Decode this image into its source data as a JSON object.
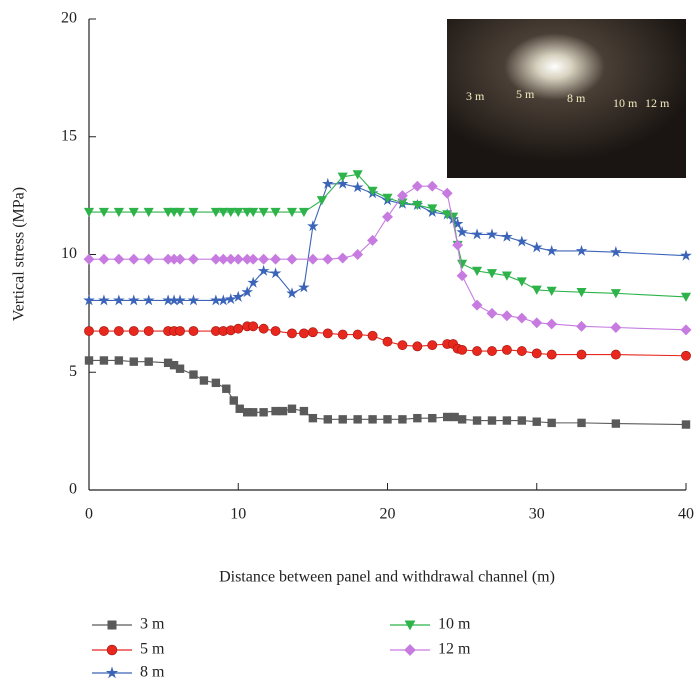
{
  "chart_data": {
    "type": "line",
    "x_label": "Distance between panel and withdrawal channel (m)",
    "y_label": "Vertical stress (MPa)",
    "xlim": [
      0,
      40
    ],
    "xticks": [
      0,
      10,
      20,
      30,
      40
    ],
    "ylim": [
      0,
      20
    ],
    "yticks": [
      0,
      5,
      10,
      15,
      20
    ],
    "inset_labels": [
      "3 m",
      "5 m",
      "8 m",
      "10 m",
      "12 m"
    ],
    "series": [
      {
        "name": "3 m",
        "color": "#5a5a5a",
        "marker": "square",
        "x": [
          0,
          1,
          2,
          3,
          4,
          5.3,
          5.7,
          6.1,
          7,
          7.7,
          8.5,
          9.2,
          9.7,
          10.1,
          10.6,
          11,
          11.7,
          12.5,
          13,
          13.6,
          14.4,
          15,
          16,
          17,
          18,
          19,
          20,
          21,
          22,
          23,
          24,
          24.5,
          25,
          26,
          27,
          28,
          29,
          30,
          31,
          33,
          35.3,
          40
        ],
        "values": [
          5.5,
          5.5,
          5.5,
          5.45,
          5.45,
          5.4,
          5.3,
          5.15,
          4.9,
          4.65,
          4.55,
          4.3,
          3.8,
          3.45,
          3.3,
          3.3,
          3.3,
          3.35,
          3.35,
          3.45,
          3.35,
          3.05,
          3.0,
          3.0,
          3.0,
          3.0,
          3.0,
          3.0,
          3.05,
          3.05,
          3.1,
          3.1,
          3.0,
          2.95,
          2.95,
          2.95,
          2.95,
          2.9,
          2.85,
          2.85,
          2.82,
          2.78
        ]
      },
      {
        "name": "5 m",
        "color": "#e8281e",
        "marker": "circle",
        "x": [
          0,
          1,
          2,
          3,
          4,
          5.3,
          5.7,
          6.1,
          7,
          8.5,
          9,
          9.5,
          10,
          10.6,
          11,
          11.7,
          12.5,
          13.6,
          14.4,
          15,
          16,
          17,
          18,
          19,
          20,
          21,
          22,
          23,
          24,
          24.4,
          24.7,
          25,
          26,
          27,
          28,
          29,
          30,
          31,
          33,
          35.3,
          40
        ],
        "values": [
          6.75,
          6.75,
          6.75,
          6.75,
          6.75,
          6.75,
          6.75,
          6.75,
          6.75,
          6.75,
          6.75,
          6.78,
          6.85,
          6.95,
          6.95,
          6.85,
          6.75,
          6.65,
          6.65,
          6.7,
          6.65,
          6.6,
          6.6,
          6.55,
          6.3,
          6.15,
          6.1,
          6.15,
          6.2,
          6.2,
          6.0,
          5.95,
          5.9,
          5.9,
          5.95,
          5.9,
          5.8,
          5.75,
          5.75,
          5.75,
          5.7
        ]
      },
      {
        "name": "8 m",
        "color": "#3b64b8",
        "marker": "star",
        "x": [
          0,
          1,
          2,
          3,
          4,
          5.3,
          5.7,
          6.1,
          7,
          8.5,
          9,
          9.5,
          10,
          10.6,
          11,
          11.7,
          12.5,
          13.6,
          14.4,
          15,
          16,
          17,
          18,
          19,
          20,
          21,
          22,
          23,
          24,
          24.4,
          24.7,
          25,
          26,
          27,
          28,
          29,
          30,
          31,
          33,
          35.3,
          40
        ],
        "values": [
          8.05,
          8.05,
          8.05,
          8.05,
          8.05,
          8.05,
          8.05,
          8.05,
          8.05,
          8.05,
          8.05,
          8.1,
          8.2,
          8.4,
          8.8,
          9.3,
          9.2,
          8.35,
          8.6,
          11.2,
          13.0,
          13.0,
          12.85,
          12.6,
          12.3,
          12.15,
          12.1,
          11.8,
          11.7,
          11.5,
          11.3,
          10.95,
          10.85,
          10.85,
          10.75,
          10.55,
          10.3,
          10.15,
          10.15,
          10.1,
          9.95
        ]
      },
      {
        "name": "10 m",
        "color": "#2db34a",
        "marker": "triangle",
        "x": [
          0,
          1,
          2,
          3,
          4,
          5.3,
          5.7,
          6.1,
          7,
          8.5,
          9,
          9.5,
          10,
          10.6,
          11,
          11.7,
          12.5,
          13.6,
          14.4,
          15.6,
          17,
          18,
          19,
          20,
          21,
          22,
          23,
          24,
          24.4,
          24.7,
          25,
          26,
          27,
          28,
          29,
          30,
          31,
          33,
          35.3,
          40
        ],
        "values": [
          11.8,
          11.8,
          11.8,
          11.8,
          11.8,
          11.8,
          11.8,
          11.8,
          11.8,
          11.8,
          11.8,
          11.8,
          11.8,
          11.8,
          11.8,
          11.8,
          11.8,
          11.8,
          11.8,
          12.3,
          13.3,
          13.4,
          12.7,
          12.4,
          12.2,
          12.1,
          11.95,
          11.7,
          11.6,
          10.4,
          9.6,
          9.3,
          9.2,
          9.1,
          8.85,
          8.5,
          8.45,
          8.4,
          8.35,
          8.2
        ]
      },
      {
        "name": "12 m",
        "color": "#c77be0",
        "marker": "diamond",
        "x": [
          0,
          1,
          2,
          3,
          4,
          5.3,
          5.7,
          6.1,
          7,
          8.5,
          9,
          9.5,
          10,
          10.6,
          11,
          11.7,
          12.5,
          13.6,
          15,
          16,
          17,
          18,
          19,
          20,
          21,
          22,
          23,
          24,
          24.7,
          25,
          26,
          27,
          28,
          29,
          30,
          31,
          33,
          35.3,
          40
        ],
        "values": [
          9.8,
          9.8,
          9.8,
          9.8,
          9.8,
          9.8,
          9.8,
          9.8,
          9.8,
          9.8,
          9.8,
          9.8,
          9.8,
          9.8,
          9.8,
          9.8,
          9.8,
          9.8,
          9.8,
          9.8,
          9.85,
          10.0,
          10.6,
          11.6,
          12.5,
          12.9,
          12.9,
          12.6,
          10.4,
          9.1,
          7.85,
          7.5,
          7.4,
          7.3,
          7.1,
          7.05,
          6.95,
          6.9,
          6.8
        ]
      }
    ]
  }
}
